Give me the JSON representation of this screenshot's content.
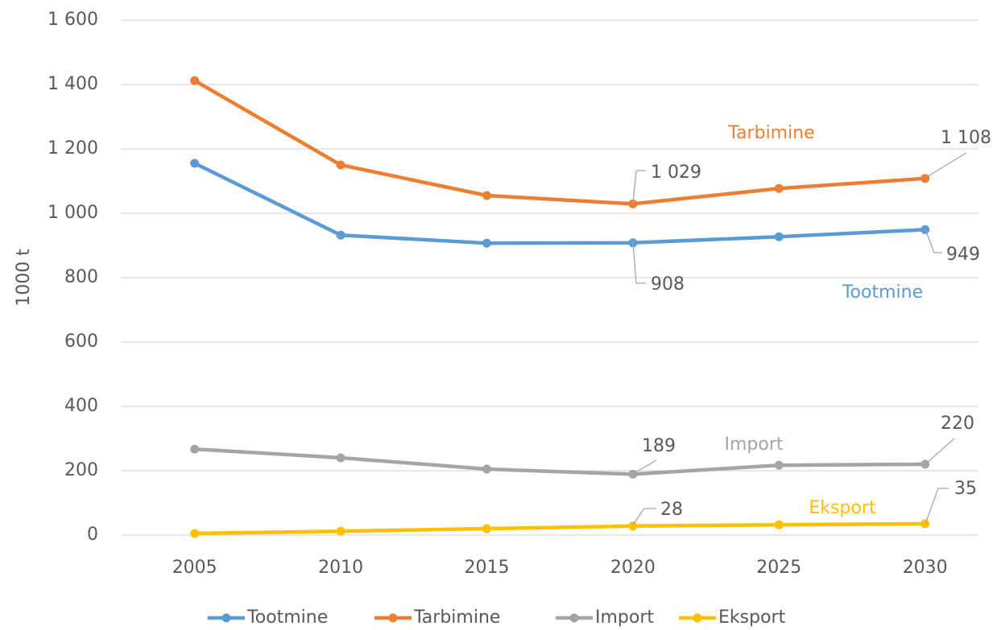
{
  "chart_data": {
    "type": "line",
    "y_label": "1000 t",
    "categories": [
      "2005",
      "2010",
      "2015",
      "2020",
      "2025",
      "2030"
    ],
    "series": [
      {
        "name": "Tootmine",
        "color": "#5b9bd5",
        "values": [
          1155,
          932,
          907,
          908,
          927,
          949
        ],
        "value_labels": [
          null,
          null,
          null,
          "908",
          null,
          "949"
        ]
      },
      {
        "name": "Tarbimine",
        "color": "#ed7d31",
        "values": [
          1412,
          1150,
          1055,
          1029,
          1077,
          1108
        ],
        "value_labels": [
          null,
          null,
          null,
          "1 029",
          null,
          "1 108"
        ]
      },
      {
        "name": "Import",
        "color": "#a5a5a5",
        "values": [
          267,
          240,
          205,
          189,
          217,
          220
        ],
        "value_labels": [
          null,
          null,
          null,
          "189",
          null,
          "220"
        ]
      },
      {
        "name": "Eksport",
        "color": "#ffc000",
        "values": [
          5,
          12,
          20,
          28,
          32,
          35
        ],
        "value_labels": [
          null,
          null,
          null,
          "28",
          null,
          "35"
        ]
      }
    ],
    "ylim": [
      0,
      1600
    ],
    "yticks": [
      0,
      200,
      400,
      600,
      800,
      {
        "value": 1000,
        "label": "1 000"
      },
      {
        "value": 1200,
        "label": "1 200"
      },
      {
        "value": 1400,
        "label": "1 400"
      },
      {
        "value": 1600,
        "label": "1 600"
      }
    ],
    "grid": true,
    "legend": "bottom"
  }
}
